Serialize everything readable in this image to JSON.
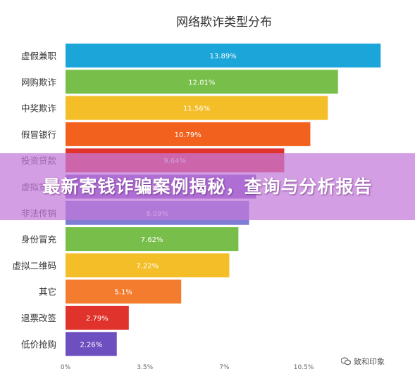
{
  "chart_data": {
    "type": "bar",
    "orientation": "horizontal",
    "title": "网络欺诈类型分布",
    "categories": [
      "虚假兼职",
      "网购欺诈",
      "中奖欺诈",
      "假冒银行",
      "投资贷款",
      "虚拟货币",
      "非法传销",
      "身份冒充",
      "虚拟二维码",
      "其它",
      "退票改签",
      "低价抢购"
    ],
    "values": [
      13.89,
      12.01,
      11.56,
      10.79,
      9.64,
      8.4,
      8.09,
      7.62,
      7.22,
      5.1,
      2.79,
      2.26
    ],
    "value_labels": [
      "13.89%",
      "12.01%",
      "11.56%",
      "10.79%",
      "9.64%",
      "8.4%",
      "8.09%",
      "7.62%",
      "7.22%",
      "5.1%",
      "2.79%",
      "2.26%"
    ],
    "colors": [
      "#1BA5D8",
      "#78BE4A",
      "#F3BE27",
      "#F2611D",
      "#E0332C",
      "#7A52C2",
      "#7E7CD5",
      "#78BE4A",
      "#F3BE27",
      "#F47C2E",
      "#E0332C",
      "#6E4FC0"
    ],
    "x_ticks": [
      0,
      3.5,
      7,
      10.5
    ],
    "x_tick_labels": [
      "0%",
      "3.5%",
      "7%",
      "10.5%"
    ],
    "xlim": [
      0,
      14
    ],
    "grid": false,
    "xlabel": "",
    "ylabel": ""
  },
  "banner": {
    "title": "最新寄钱诈骗案例揭秘，查询与分析报告"
  },
  "watermark": {
    "text": "致和印象",
    "icon": "wechat-icon"
  }
}
